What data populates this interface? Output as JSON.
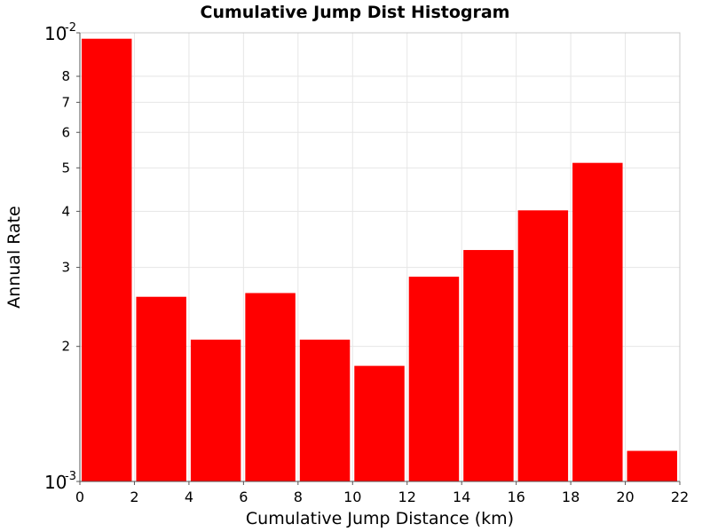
{
  "chart_data": {
    "type": "bar",
    "title": "Cumulative Jump Dist Histogram",
    "xlabel": "Cumulative Jump Distance (km)",
    "ylabel": "Annual Rate",
    "x_bin_edges": [
      0,
      2,
      4,
      6,
      8,
      10,
      12,
      14,
      16,
      18,
      20,
      22
    ],
    "values": [
      0.0097,
      0.00258,
      0.00207,
      0.00263,
      0.00207,
      0.00181,
      0.00286,
      0.00328,
      0.00402,
      0.00513,
      0.00117
    ],
    "xlim": [
      0,
      22
    ],
    "ylim": [
      0.001,
      0.01
    ],
    "y_scale": "log",
    "x_ticks": [
      "0",
      "2",
      "4",
      "6",
      "8",
      "10",
      "12",
      "14",
      "16",
      "18",
      "20",
      "22"
    ],
    "y_minor_ticks": [
      {
        "value": 0.002,
        "label": "2"
      },
      {
        "value": 0.003,
        "label": "3"
      },
      {
        "value": 0.004,
        "label": "4"
      },
      {
        "value": 0.005,
        "label": "5"
      },
      {
        "value": 0.006,
        "label": "6"
      },
      {
        "value": 0.007,
        "label": "7"
      },
      {
        "value": 0.008,
        "label": "8"
      }
    ],
    "y_decade_ticks": [
      {
        "value": 0.001,
        "base": "10",
        "exp": "-3"
      },
      {
        "value": 0.01,
        "base": "10",
        "exp": "-2"
      }
    ],
    "bar_color": "#ff0000",
    "grid": true,
    "legend": "none"
  }
}
